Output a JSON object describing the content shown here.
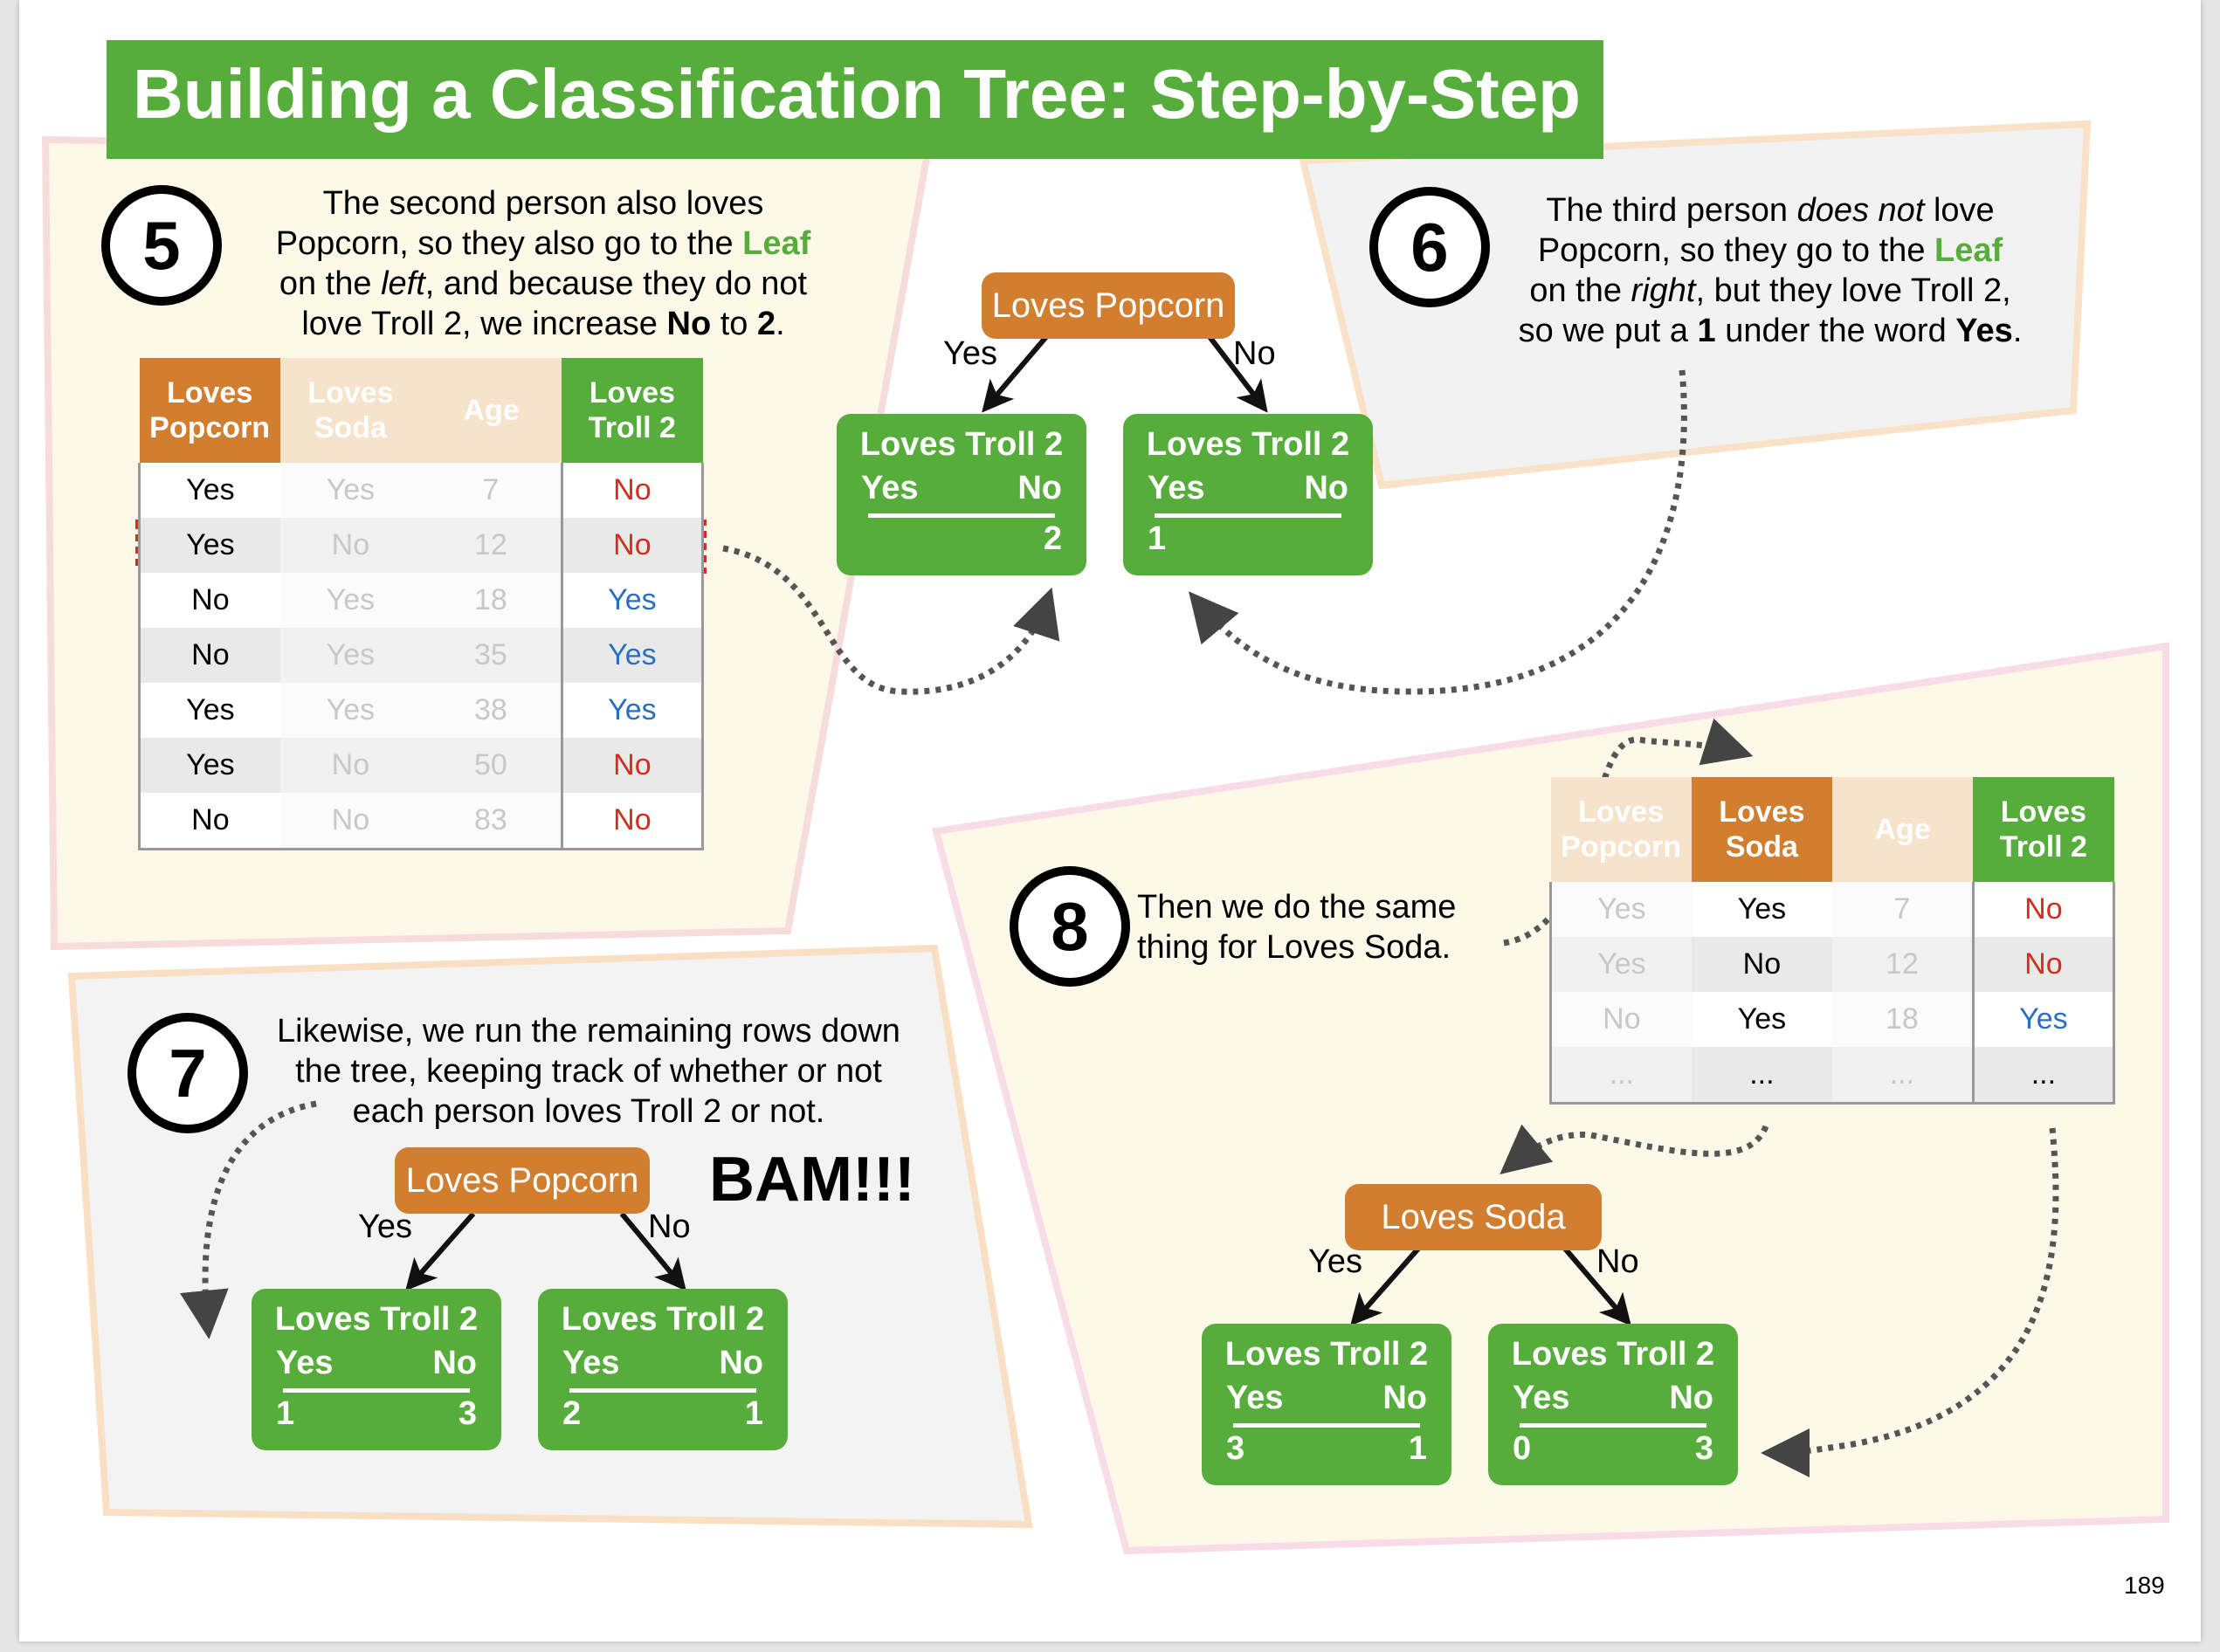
{
  "title": "Building a Classification Tree: Step-by-Step",
  "page_number": "189",
  "step5": {
    "number": "5",
    "text": [
      [
        "The second person also loves"
      ],
      [
        "Popcorn, so they also go to the ",
        {
          "g": "Leaf"
        }
      ],
      [
        "on the ",
        {
          "i": "left"
        },
        ", and because they do not"
      ],
      [
        "love Troll 2, we increase ",
        {
          "b": "No"
        },
        " to ",
        {
          "b": "2"
        },
        "."
      ]
    ],
    "table": {
      "headers": [
        "Loves Popcorn",
        "Loves Soda",
        "Age",
        "Loves Troll 2"
      ],
      "rows": [
        [
          "Yes",
          "Yes",
          "7",
          "No"
        ],
        [
          "Yes",
          "No",
          "12",
          "No"
        ],
        [
          "No",
          "Yes",
          "18",
          "Yes"
        ],
        [
          "No",
          "Yes",
          "35",
          "Yes"
        ],
        [
          "Yes",
          "Yes",
          "38",
          "Yes"
        ],
        [
          "Yes",
          "No",
          "50",
          "No"
        ],
        [
          "No",
          "No",
          "83",
          "No"
        ]
      ]
    },
    "tree": {
      "root": "Loves Popcorn",
      "yes_label": "Yes",
      "no_label": "No",
      "left": {
        "title": "Loves Troll 2",
        "yes": "Yes",
        "no": "No",
        "yes_value": "",
        "no_value": "2"
      },
      "right": {
        "title": "Loves Troll 2",
        "yes": "Yes",
        "no": "No",
        "yes_value": "1",
        "no_value": ""
      }
    }
  },
  "step6": {
    "number": "6",
    "text": [
      [
        "The third person ",
        {
          "i": "does not"
        },
        " love"
      ],
      [
        "Popcorn, so they go to the ",
        {
          "g": "Leaf"
        }
      ],
      [
        "on the ",
        {
          "i": "right"
        },
        ", but they love Troll 2,"
      ],
      [
        "so we put a ",
        {
          "b": "1"
        },
        " under the word ",
        {
          "b": "Yes"
        },
        "."
      ]
    ]
  },
  "step7": {
    "number": "7",
    "text": [
      [
        "Likewise, we run the remaining rows down"
      ],
      [
        "the tree, keeping track of whether or not"
      ],
      [
        "each person loves Troll 2 or not."
      ]
    ],
    "bam": "BAM!!!",
    "tree": {
      "root": "Loves Popcorn",
      "yes_label": "Yes",
      "no_label": "No",
      "left": {
        "title": "Loves Troll 2",
        "yes": "Yes",
        "no": "No",
        "yes_value": "1",
        "no_value": "3"
      },
      "right": {
        "title": "Loves Troll 2",
        "yes": "Yes",
        "no": "No",
        "yes_value": "2",
        "no_value": "1"
      }
    }
  },
  "step8": {
    "number": "8",
    "text": [
      [
        "Then we do the same"
      ],
      [
        "thing for Loves Soda."
      ]
    ],
    "table": {
      "headers": [
        "Loves Popcorn",
        "Loves Soda",
        "Age",
        "Loves Troll 2"
      ],
      "rows": [
        [
          "Yes",
          "Yes",
          "7",
          "No"
        ],
        [
          "Yes",
          "No",
          "12",
          "No"
        ],
        [
          "No",
          "Yes",
          "18",
          "Yes"
        ],
        [
          "...",
          "...",
          "...",
          "..."
        ]
      ]
    },
    "tree": {
      "root": "Loves Soda",
      "yes_label": "Yes",
      "no_label": "No",
      "left": {
        "title": "Loves Troll 2",
        "yes": "Yes",
        "no": "No",
        "yes_value": "3",
        "no_value": "1"
      },
      "right": {
        "title": "Loves Troll 2",
        "yes": "Yes",
        "no": "No",
        "yes_value": "0",
        "no_value": "3"
      }
    }
  },
  "colors": {
    "green": "#57ad3b",
    "orange": "#d27e30",
    "red_text": "#d62b1f",
    "blue_text": "#2a6fbf",
    "panel_cream": "#fdf8e8",
    "panel_gray": "#f3f3f3"
  }
}
